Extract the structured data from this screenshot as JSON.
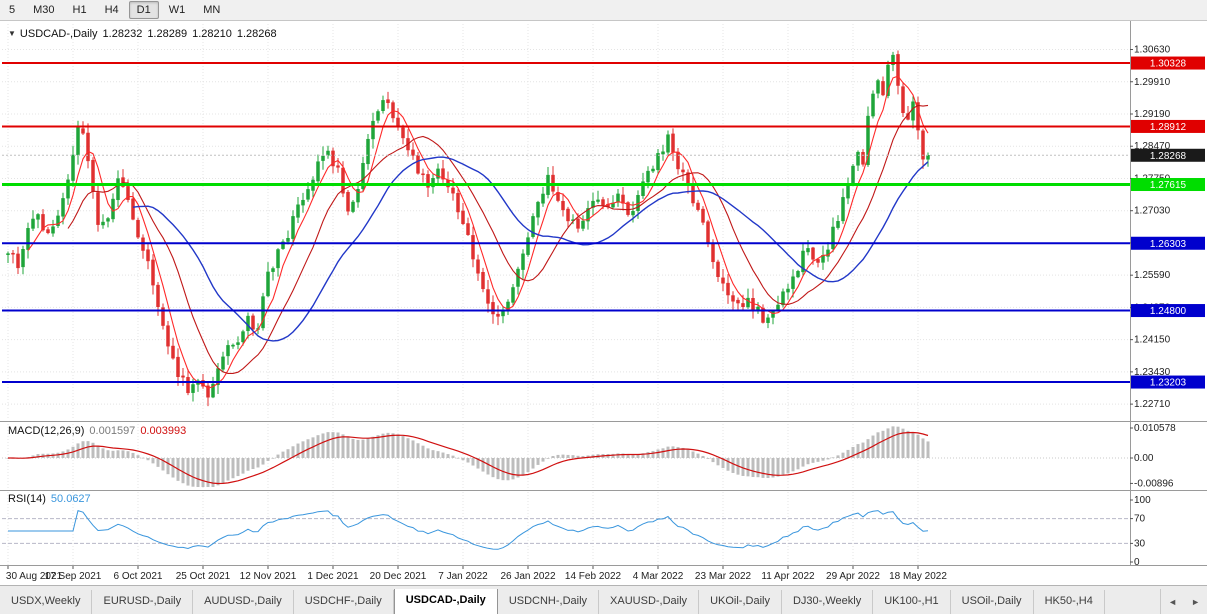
{
  "toolbar": {
    "timeframes": [
      "5",
      "M30",
      "H1",
      "H4",
      "D1",
      "W1",
      "MN"
    ],
    "active_timeframe": "D1"
  },
  "chart": {
    "collapse_icon": "▼",
    "title": "USDCAD-,Daily",
    "quote": {
      "open": "1.28232",
      "high": "1.28289",
      "low": "1.28210",
      "close": "1.28268"
    }
  },
  "chart_data": {
    "type": "candlestick",
    "symbol": "USDCAD-",
    "timeframe": "Daily",
    "ohlc_display": {
      "open": 1.28232,
      "high": 1.28289,
      "low": 1.2821,
      "close": 1.28268
    },
    "last_close": 1.28268,
    "y_range": [
      1.224,
      1.312
    ],
    "y_ticks": [
      "1.30630",
      "1.29910",
      "1.29190",
      "1.28470",
      "1.27750",
      "1.27030",
      "1.26310",
      "1.25590",
      "1.24870",
      "1.24150",
      "1.23430",
      "1.22710"
    ],
    "x_labels": [
      "30 Aug 2021",
      "17 Sep 2021",
      "6 Oct 2021",
      "25 Oct 2021",
      "12 Nov 2021",
      "1 Dec 2021",
      "20 Dec 2021",
      "7 Jan 2022",
      "26 Jan 2022",
      "14 Feb 2022",
      "4 Mar 2022",
      "23 Mar 2022",
      "11 Apr 2022",
      "29 Apr 2022",
      "18 May 2022"
    ],
    "x_label_step": 13,
    "num_candles": 185,
    "candle_up_color": "#1fa53a",
    "candle_down_color": "#e03030",
    "grid_color": "#e4e4e4",
    "price_path": [
      [
        0,
        1.2615
      ],
      [
        2,
        1.2585
      ],
      [
        4,
        1.266
      ],
      [
        6,
        1.269
      ],
      [
        8,
        1.2645
      ],
      [
        10,
        1.269
      ],
      [
        12,
        1.277
      ],
      [
        14,
        1.2885
      ],
      [
        15,
        1.2865
      ],
      [
        16,
        1.281
      ],
      [
        18,
        1.266
      ],
      [
        20,
        1.268
      ],
      [
        22,
        1.2775
      ],
      [
        24,
        1.2735
      ],
      [
        26,
        1.2645
      ],
      [
        28,
        1.26
      ],
      [
        30,
        1.248
      ],
      [
        32,
        1.239
      ],
      [
        34,
        1.2345
      ],
      [
        36,
        1.23
      ],
      [
        38,
        1.2335
      ],
      [
        40,
        1.2292
      ],
      [
        42,
        1.236
      ],
      [
        44,
        1.2395
      ],
      [
        46,
        1.2405
      ],
      [
        48,
        1.2455
      ],
      [
        50,
        1.2445
      ],
      [
        52,
        1.2555
      ],
      [
        54,
        1.261
      ],
      [
        56,
        1.2645
      ],
      [
        58,
        1.271
      ],
      [
        60,
        1.2745
      ],
      [
        62,
        1.2805
      ],
      [
        64,
        1.284
      ],
      [
        66,
        1.279
      ],
      [
        68,
        1.2705
      ],
      [
        70,
        1.2745
      ],
      [
        72,
        1.2865
      ],
      [
        74,
        1.2925
      ],
      [
        76,
        1.2955
      ],
      [
        78,
        1.289
      ],
      [
        80,
        1.2845
      ],
      [
        82,
        1.279
      ],
      [
        84,
        1.2755
      ],
      [
        86,
        1.2805
      ],
      [
        88,
        1.276
      ],
      [
        90,
        1.2705
      ],
      [
        92,
        1.2645
      ],
      [
        94,
        1.2565
      ],
      [
        96,
        1.2485
      ],
      [
        98,
        1.2458
      ],
      [
        100,
        1.2505
      ],
      [
        102,
        1.2565
      ],
      [
        104,
        1.2645
      ],
      [
        106,
        1.2715
      ],
      [
        108,
        1.2775
      ],
      [
        110,
        1.2725
      ],
      [
        112,
        1.2685
      ],
      [
        114,
        1.2655
      ],
      [
        116,
        1.2705
      ],
      [
        118,
        1.2735
      ],
      [
        120,
        1.2715
      ],
      [
        122,
        1.2745
      ],
      [
        124,
        1.2695
      ],
      [
        126,
        1.2725
      ],
      [
        128,
        1.2785
      ],
      [
        130,
        1.2825
      ],
      [
        132,
        1.2865
      ],
      [
        134,
        1.2805
      ],
      [
        136,
        1.2755
      ],
      [
        138,
        1.2705
      ],
      [
        140,
        1.2625
      ],
      [
        142,
        1.2565
      ],
      [
        144,
        1.2505
      ],
      [
        146,
        1.2485
      ],
      [
        148,
        1.2515
      ],
      [
        150,
        1.2475
      ],
      [
        152,
        1.2452
      ],
      [
        154,
        1.2495
      ],
      [
        156,
        1.2535
      ],
      [
        158,
        1.2575
      ],
      [
        160,
        1.2625
      ],
      [
        162,
        1.2585
      ],
      [
        164,
        1.2625
      ],
      [
        166,
        1.2685
      ],
      [
        168,
        1.2755
      ],
      [
        170,
        1.2835
      ],
      [
        171,
        1.2805
      ],
      [
        172,
        1.2905
      ],
      [
        173,
        1.2965
      ],
      [
        174,
        1.3005
      ],
      [
        175,
        1.2955
      ],
      [
        176,
        1.3035
      ],
      [
        177,
        1.3062
      ],
      [
        178,
        1.2992
      ],
      [
        179,
        1.2925
      ],
      [
        180,
        1.2895
      ],
      [
        181,
        1.2935
      ],
      [
        182,
        1.2872
      ],
      [
        183,
        1.2825
      ],
      [
        184,
        1.28268
      ]
    ],
    "h_lines": [
      {
        "price": 1.30328,
        "label": "1.30328",
        "color": "#e00000",
        "width": 2
      },
      {
        "price": 1.28912,
        "label": "1.28912",
        "color": "#e00000",
        "width": 2
      },
      {
        "price": 1.27615,
        "label": "1.27615",
        "color": "#00dd00",
        "width": 3
      },
      {
        "price": 1.26303,
        "label": "1.26303",
        "color": "#0000cd",
        "width": 2
      },
      {
        "price": 1.248,
        "label": "1.24800",
        "color": "#0000cd",
        "width": 2
      },
      {
        "price": 1.23203,
        "label": "1.23203",
        "color": "#0000cd",
        "width": 2
      }
    ],
    "current_price": {
      "price": 1.28268,
      "label": "1.28268",
      "color": "#1a1a1a"
    },
    "moving_averages": [
      {
        "period": 5,
        "color": "#ff2a2a",
        "width": 1.1
      },
      {
        "period": 13,
        "color": "#c01818",
        "width": 1.1
      },
      {
        "period": 26,
        "color": "#2238c8",
        "width": 1.4
      }
    ],
    "macd": {
      "label": "MACD(12,26,9)",
      "fast": 12,
      "slow": 26,
      "signal": 9,
      "value_main": "0.001597",
      "value_signal": "0.003993",
      "axis_ticks": [
        "0.010578",
        "0.00",
        "-0.00896"
      ],
      "hist_color": "#bdbdbd",
      "signal_color": "#d01010"
    },
    "rsi": {
      "label": "RSI(14)",
      "value": "50.0627",
      "period": 14,
      "axis_ticks": [
        "100",
        "70",
        "30",
        "0"
      ],
      "levels": [
        70,
        30
      ],
      "line_color": "#3a96dd"
    }
  },
  "tabs": {
    "items": [
      "USDX,Weekly",
      "EURUSD-,Daily",
      "AUDUSD-,Daily",
      "USDCHF-,Daily",
      "USDCAD-,Daily",
      "USDCNH-,Daily",
      "XAUUSD-,Daily",
      "UKOil-,Daily",
      "DJ30-,Weekly",
      "UK100-,H1",
      "USOil-,Daily",
      "HK50-,H4"
    ],
    "active_index": 4,
    "scroll_left_icon": "◄",
    "scroll_right_icon": "►"
  }
}
